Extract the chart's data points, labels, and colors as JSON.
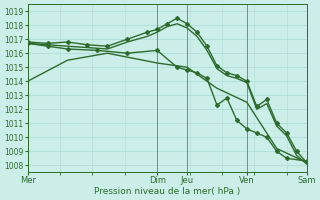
{
  "xlabel": "Pression niveau de la mer( hPa )",
  "bg_color": "#cceee8",
  "grid_color": "#b0ddd8",
  "line_color": "#2d6b2d",
  "ylim": [
    1007.5,
    1019.5
  ],
  "yticks": [
    1008,
    1009,
    1010,
    1011,
    1012,
    1013,
    1014,
    1015,
    1016,
    1017,
    1018,
    1019
  ],
  "day_labels": [
    "Mer",
    "Dim",
    "Jeu",
    "Ven",
    "Sam"
  ],
  "day_positions": [
    0,
    13,
    16,
    22,
    28
  ],
  "xlim": [
    0,
    28
  ],
  "vlines": [
    0,
    13,
    16,
    22,
    28
  ],
  "series": [
    {
      "x": [
        0,
        4,
        8,
        13,
        16,
        19,
        22,
        25,
        28
      ],
      "y": [
        1014.0,
        1015.5,
        1016.0,
        1015.3,
        1015.0,
        1013.5,
        1012.5,
        1009.2,
        1008.2
      ],
      "marker": "None",
      "lw": 1.0
    },
    {
      "x": [
        0,
        2,
        4,
        6,
        8,
        10,
        12,
        13,
        14,
        15,
        16,
        17,
        18,
        19,
        20,
        21,
        22,
        23,
        24,
        25,
        26,
        27,
        28
      ],
      "y": [
        1016.8,
        1016.7,
        1016.8,
        1016.6,
        1016.5,
        1017.0,
        1017.5,
        1017.7,
        1018.1,
        1018.5,
        1018.1,
        1017.5,
        1016.5,
        1015.1,
        1014.6,
        1014.4,
        1014.0,
        1012.2,
        1012.7,
        1011.0,
        1010.3,
        1009.0,
        1008.2
      ],
      "marker": "D",
      "ms": 2.0,
      "lw": 1.0
    },
    {
      "x": [
        0,
        2,
        4,
        6,
        8,
        10,
        12,
        13,
        14,
        15,
        16,
        17,
        18,
        19,
        20,
        21,
        22,
        23,
        24,
        25,
        26,
        27,
        28
      ],
      "y": [
        1016.7,
        1016.6,
        1016.5,
        1016.4,
        1016.3,
        1016.8,
        1017.2,
        1017.5,
        1017.9,
        1018.1,
        1017.8,
        1017.2,
        1016.2,
        1014.9,
        1014.4,
        1014.2,
        1013.9,
        1012.0,
        1012.4,
        1010.8,
        1010.1,
        1008.7,
        1008.1
      ],
      "marker": "None",
      "lw": 1.0
    },
    {
      "x": [
        0,
        2,
        4,
        7,
        10,
        13,
        15,
        16,
        17,
        18,
        19,
        20,
        21,
        22,
        23,
        24,
        25,
        26,
        28
      ],
      "y": [
        1016.7,
        1016.5,
        1016.3,
        1016.2,
        1016.0,
        1016.2,
        1015.0,
        1014.8,
        1014.6,
        1014.2,
        1012.3,
        1012.8,
        1011.2,
        1010.6,
        1010.3,
        1010.0,
        1009.0,
        1008.5,
        1008.3
      ],
      "marker": "D",
      "ms": 2.0,
      "lw": 1.0
    }
  ]
}
